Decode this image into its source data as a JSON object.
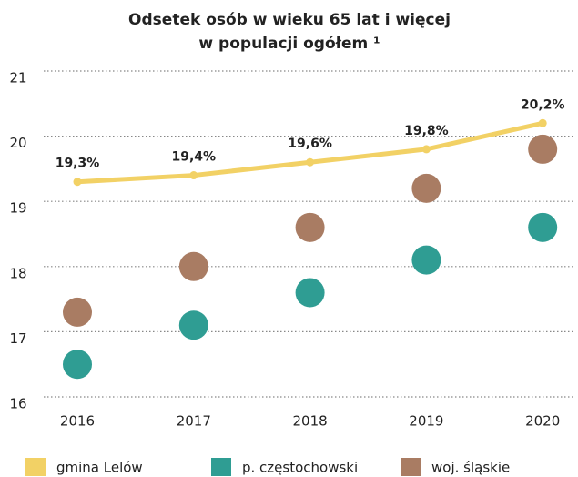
{
  "chart_data": {
    "type": "line",
    "title_lines": [
      "Odsetek osób w wieku 65 lat i więcej",
      "w populacji ogółem ¹"
    ],
    "categories": [
      "2016",
      "2017",
      "2018",
      "2019",
      "2020"
    ],
    "ylim": [
      16,
      21
    ],
    "yticks": [
      16,
      17,
      18,
      19,
      20,
      21
    ],
    "grid": true,
    "series": [
      {
        "name": "gmina Lelów",
        "type": "line",
        "color": "#f2d165",
        "values": [
          19.3,
          19.4,
          19.6,
          19.8,
          20.2
        ],
        "value_labels": [
          "19,3%",
          "19,4%",
          "19,6%",
          "19,8%",
          "20,2%"
        ]
      },
      {
        "name": "p. częstochowski",
        "type": "scatter",
        "color": "#2f9d93",
        "values": [
          16.5,
          17.1,
          17.6,
          18.1,
          18.6
        ]
      },
      {
        "name": "woj. śląskie",
        "type": "scatter",
        "color": "#a97c63",
        "values": [
          17.3,
          18.0,
          18.6,
          19.2,
          19.8
        ]
      }
    ]
  }
}
